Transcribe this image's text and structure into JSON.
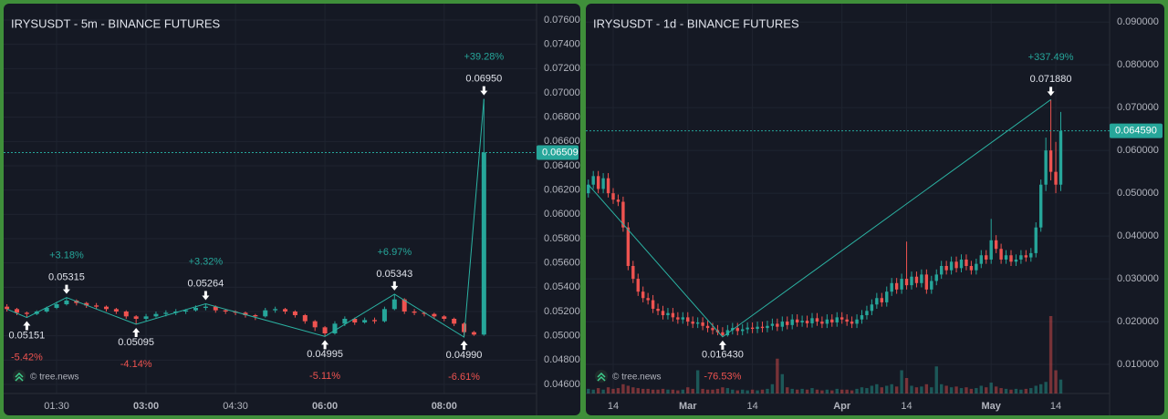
{
  "chart_data": [
    {
      "type": "candlestick",
      "title": "IRYSUSDT - 5m - BINANCE FUTURES",
      "watermark": "© tree.news",
      "categories": [
        null,
        null,
        null,
        null,
        null,
        "01:30",
        null,
        null,
        null,
        null,
        null,
        null,
        null,
        null,
        "03:00",
        null,
        null,
        null,
        null,
        null,
        null,
        null,
        null,
        "04:30",
        null,
        null,
        null,
        null,
        null,
        null,
        null,
        null,
        "06:00",
        null,
        null,
        null,
        null,
        null,
        null,
        null,
        null,
        null,
        null,
        null,
        "08:00",
        null,
        null,
        null,
        null
      ],
      "open": [
        0.0524,
        0.0522,
        0.0519,
        0.0518,
        0.052,
        0.0523,
        0.0526,
        0.0529,
        0.0527,
        0.0525,
        0.0524,
        0.0522,
        0.052,
        0.0516,
        0.0514,
        0.0516,
        0.0518,
        0.0519,
        0.052,
        0.0521,
        0.0523,
        0.0524,
        0.0521,
        0.052,
        0.0519,
        0.0517,
        0.0516,
        0.0521,
        0.0522,
        0.052,
        0.0517,
        0.0512,
        0.0507,
        0.0502,
        0.051,
        0.0514,
        0.0511,
        0.0513,
        0.0512,
        0.0522,
        0.053,
        0.052,
        0.0519,
        0.0518,
        0.0516,
        0.0514,
        0.051,
        0.0503,
        0.0501
      ],
      "high": [
        0.0526,
        0.0523,
        0.052,
        0.0521,
        0.0524,
        0.0528,
        0.05315,
        0.053,
        0.0528,
        0.0527,
        0.0525,
        0.0523,
        0.0521,
        0.0517,
        0.0518,
        0.052,
        0.0521,
        0.0522,
        0.0522,
        0.0525,
        0.05264,
        0.0525,
        0.0522,
        0.0521,
        0.052,
        0.0518,
        0.0523,
        0.0524,
        0.0523,
        0.0521,
        0.0518,
        0.0513,
        0.0508,
        0.0512,
        0.0516,
        0.0515,
        0.0515,
        0.0515,
        0.0524,
        0.05343,
        0.0531,
        0.0522,
        0.052,
        0.0519,
        0.0517,
        0.0515,
        0.0511,
        0.0504,
        0.0695
      ],
      "low": [
        0.052,
        0.0517,
        0.05151,
        0.0517,
        0.0519,
        0.0522,
        0.0525,
        0.0525,
        0.0523,
        0.0522,
        0.052,
        0.0518,
        0.0514,
        0.05095,
        0.0512,
        0.0515,
        0.0516,
        0.0517,
        0.0518,
        0.052,
        0.0521,
        0.0519,
        0.0518,
        0.0517,
        0.0515,
        0.0513,
        0.0515,
        0.0519,
        0.0518,
        0.0515,
        0.051,
        0.0504,
        0.04995,
        0.0501,
        0.0508,
        0.0509,
        0.051,
        0.051,
        0.0511,
        0.0521,
        0.0518,
        0.0517,
        0.0516,
        0.0514,
        0.0512,
        0.0508,
        0.0499,
        0.05,
        0.05
      ],
      "close": [
        0.0522,
        0.0519,
        0.0518,
        0.052,
        0.0523,
        0.0526,
        0.0529,
        0.0527,
        0.0525,
        0.0524,
        0.0522,
        0.052,
        0.0516,
        0.0514,
        0.0516,
        0.0518,
        0.0519,
        0.052,
        0.0521,
        0.0523,
        0.0524,
        0.0521,
        0.052,
        0.0519,
        0.0517,
        0.0516,
        0.0521,
        0.0522,
        0.052,
        0.0517,
        0.0512,
        0.0507,
        0.0502,
        0.051,
        0.0514,
        0.0511,
        0.0513,
        0.0512,
        0.0522,
        0.053,
        0.052,
        0.0519,
        0.0518,
        0.0516,
        0.0514,
        0.051,
        0.0503,
        0.0501,
        0.06509
      ],
      "pivots": [
        {
          "value": 0.05151,
          "label": "0.05151",
          "change": "-5.42%"
        },
        {
          "value": 0.05315,
          "label": "0.05315",
          "change": "+3.18%"
        },
        {
          "value": 0.05095,
          "label": "0.05095",
          "change": "-4.14%"
        },
        {
          "value": 0.05264,
          "label": "0.05264",
          "change": "+3.32%"
        },
        {
          "value": 0.04995,
          "label": "0.04995",
          "change": "-5.11%"
        },
        {
          "value": 0.05343,
          "label": "0.05343",
          "change": "+6.97%"
        },
        {
          "value": 0.0499,
          "label": "0.04990",
          "change": "-6.61%"
        },
        {
          "value": 0.0695,
          "label": "0.06950",
          "change": "+39.28%"
        }
      ],
      "last": {
        "value": 0.06509,
        "label": "0.06509"
      },
      "ylim": [
        0.04525,
        0.07735
      ],
      "yticks": [
        {
          "value": 0.046,
          "label": "0.04600"
        },
        {
          "value": 0.048,
          "label": "0.04800"
        },
        {
          "value": 0.05,
          "label": "0.05000"
        },
        {
          "value": 0.052,
          "label": "0.05200"
        },
        {
          "value": 0.054,
          "label": "0.05400"
        },
        {
          "value": 0.056,
          "label": "0.05600"
        },
        {
          "value": 0.058,
          "label": "0.05800"
        },
        {
          "value": 0.06,
          "label": "0.06000"
        },
        {
          "value": 0.062,
          "label": "0.06200"
        },
        {
          "value": 0.064,
          "label": "0.06400"
        },
        {
          "value": 0.066,
          "label": "0.06600"
        },
        {
          "value": 0.068,
          "label": "0.06800"
        },
        {
          "value": 0.07,
          "label": "0.07000"
        },
        {
          "value": 0.072,
          "label": "0.07200"
        },
        {
          "value": 0.074,
          "label": "0.07400"
        },
        {
          "value": 0.076,
          "label": "0.07600"
        }
      ],
      "grid": true,
      "up_color": "#26a69a",
      "down_color": "#ef5350"
    },
    {
      "type": "candlestick",
      "title": "IRYSUSDT - 1d - BINANCE FUTURES",
      "watermark": "© tree.news",
      "categories": [
        null,
        null,
        null,
        null,
        null,
        "14",
        null,
        null,
        null,
        null,
        null,
        null,
        null,
        null,
        null,
        null,
        null,
        null,
        null,
        null,
        "Mar",
        null,
        null,
        null,
        null,
        null,
        null,
        null,
        null,
        null,
        null,
        null,
        null,
        "14",
        null,
        null,
        null,
        null,
        null,
        null,
        null,
        null,
        null,
        null,
        null,
        null,
        null,
        null,
        null,
        null,
        null,
        "Apr",
        null,
        null,
        null,
        null,
        null,
        null,
        null,
        null,
        null,
        null,
        null,
        null,
        "14",
        null,
        null,
        null,
        null,
        null,
        null,
        null,
        null,
        null,
        null,
        null,
        null,
        null,
        null,
        null,
        null,
        "May",
        null,
        null,
        null,
        null,
        null,
        null,
        null,
        null,
        null,
        null,
        null,
        null,
        "14",
        null
      ],
      "open": [
        0.05,
        0.052,
        0.054,
        0.051,
        0.0535,
        0.05,
        0.0485,
        0.048,
        0.042,
        0.033,
        0.03,
        0.027,
        0.0255,
        0.025,
        0.023,
        0.0225,
        0.0215,
        0.022,
        0.021,
        0.0205,
        0.021,
        0.02,
        0.0195,
        0.0198,
        0.019,
        0.0185,
        0.018,
        0.0175,
        0.0168,
        0.018,
        0.0185,
        0.0178,
        0.0182,
        0.0186,
        0.0183,
        0.0188,
        0.0185,
        0.019,
        0.0195,
        0.0188,
        0.02,
        0.0192,
        0.0205,
        0.0198,
        0.0202,
        0.0196,
        0.0208,
        0.02,
        0.0195,
        0.0205,
        0.0198,
        0.021,
        0.0205,
        0.02,
        0.0195,
        0.0205,
        0.0215,
        0.0225,
        0.024,
        0.0255,
        0.0245,
        0.027,
        0.029,
        0.0275,
        0.03,
        0.0285,
        0.0305,
        0.029,
        0.031,
        0.0275,
        0.0295,
        0.031,
        0.033,
        0.032,
        0.034,
        0.0325,
        0.0345,
        0.033,
        0.032,
        0.0335,
        0.0355,
        0.0345,
        0.039,
        0.037,
        0.0345,
        0.0355,
        0.034,
        0.0345,
        0.0355,
        0.035,
        0.036,
        0.042,
        0.052,
        0.06,
        0.055,
        0.052
      ],
      "high": [
        0.0532,
        0.0552,
        0.0552,
        0.0547,
        0.0547,
        0.0512,
        0.0497,
        0.0492,
        0.0432,
        0.0342,
        0.0312,
        0.0282,
        0.0267,
        0.0262,
        0.0242,
        0.0237,
        0.0232,
        0.0232,
        0.0222,
        0.0222,
        0.0222,
        0.0212,
        0.021,
        0.021,
        0.0202,
        0.0197,
        0.0192,
        0.0187,
        0.0192,
        0.0197,
        0.0197,
        0.0194,
        0.0198,
        0.0198,
        0.02,
        0.02,
        0.0202,
        0.0207,
        0.0207,
        0.0212,
        0.0212,
        0.0217,
        0.0217,
        0.0214,
        0.0214,
        0.022,
        0.022,
        0.0212,
        0.0217,
        0.0217,
        0.0222,
        0.0222,
        0.0217,
        0.0212,
        0.0217,
        0.0227,
        0.0237,
        0.0252,
        0.0267,
        0.0267,
        0.0282,
        0.0302,
        0.0302,
        0.0312,
        0.0387,
        0.0317,
        0.0317,
        0.0322,
        0.0322,
        0.0307,
        0.0322,
        0.0342,
        0.0342,
        0.0352,
        0.0352,
        0.0357,
        0.0357,
        0.0342,
        0.0347,
        0.0367,
        0.0367,
        0.044,
        0.0402,
        0.0382,
        0.0367,
        0.0367,
        0.0357,
        0.0367,
        0.0367,
        0.0372,
        0.0432,
        0.0532,
        0.063,
        0.07188,
        0.062,
        0.069
      ],
      "low": [
        0.049,
        0.051,
        0.05,
        0.05,
        0.049,
        0.0475,
        0.047,
        0.041,
        0.032,
        0.029,
        0.026,
        0.0245,
        0.024,
        0.022,
        0.0215,
        0.0205,
        0.0205,
        0.02,
        0.0195,
        0.0195,
        0.019,
        0.0185,
        0.0185,
        0.018,
        0.0175,
        0.017,
        0.0168,
        0.01643,
        0.0165,
        0.017,
        0.0168,
        0.0168,
        0.0172,
        0.0173,
        0.0173,
        0.0175,
        0.0175,
        0.018,
        0.0178,
        0.0178,
        0.0182,
        0.0182,
        0.0188,
        0.0188,
        0.0186,
        0.0186,
        0.019,
        0.0185,
        0.0185,
        0.0188,
        0.0188,
        0.0195,
        0.019,
        0.0185,
        0.0185,
        0.0195,
        0.0205,
        0.0215,
        0.023,
        0.0235,
        0.0235,
        0.026,
        0.0265,
        0.0265,
        0.0275,
        0.0275,
        0.028,
        0.028,
        0.0265,
        0.0265,
        0.0285,
        0.03,
        0.031,
        0.031,
        0.0315,
        0.0315,
        0.032,
        0.031,
        0.031,
        0.0325,
        0.0335,
        0.0335,
        0.036,
        0.0335,
        0.0335,
        0.033,
        0.033,
        0.0335,
        0.034,
        0.034,
        0.035,
        0.041,
        0.0505,
        0.053,
        0.05,
        0.0505
      ],
      "close": [
        0.052,
        0.054,
        0.051,
        0.0535,
        0.05,
        0.0485,
        0.048,
        0.042,
        0.033,
        0.03,
        0.027,
        0.0255,
        0.025,
        0.023,
        0.0225,
        0.0215,
        0.022,
        0.021,
        0.0205,
        0.021,
        0.02,
        0.0195,
        0.0198,
        0.019,
        0.0185,
        0.018,
        0.0175,
        0.0168,
        0.018,
        0.0185,
        0.0178,
        0.0182,
        0.0186,
        0.0183,
        0.0188,
        0.0185,
        0.019,
        0.0195,
        0.0188,
        0.02,
        0.0192,
        0.0205,
        0.0198,
        0.0202,
        0.0196,
        0.0208,
        0.02,
        0.0195,
        0.0205,
        0.0198,
        0.021,
        0.0205,
        0.02,
        0.0195,
        0.0205,
        0.0215,
        0.0225,
        0.024,
        0.0255,
        0.0245,
        0.027,
        0.029,
        0.0275,
        0.03,
        0.0285,
        0.0305,
        0.029,
        0.031,
        0.0275,
        0.0295,
        0.031,
        0.033,
        0.032,
        0.034,
        0.0325,
        0.0345,
        0.033,
        0.032,
        0.0335,
        0.0355,
        0.0345,
        0.039,
        0.037,
        0.0345,
        0.0355,
        0.034,
        0.0345,
        0.0355,
        0.035,
        0.036,
        0.042,
        0.052,
        0.06,
        0.055,
        0.052,
        0.06459
      ],
      "volume": [
        6,
        5,
        7,
        5,
        8,
        6,
        7,
        12,
        10,
        8,
        7,
        6,
        6,
        5,
        5,
        6,
        5,
        5,
        4,
        5,
        8,
        6,
        30,
        6,
        5,
        5,
        6,
        8,
        7,
        5,
        4,
        5,
        4,
        5,
        4,
        5,
        6,
        12,
        45,
        25,
        8,
        6,
        5,
        6,
        5,
        7,
        5,
        4,
        5,
        4,
        6,
        5,
        5,
        4,
        6,
        8,
        7,
        10,
        12,
        8,
        10,
        12,
        9,
        30,
        20,
        10,
        8,
        9,
        12,
        8,
        35,
        12,
        10,
        8,
        9,
        7,
        8,
        6,
        7,
        10,
        8,
        14,
        9,
        7,
        6,
        5,
        6,
        5,
        6,
        7,
        10,
        12,
        15,
        100,
        30,
        18
      ],
      "pivots": [
        {
          "value": 0.01643,
          "label": "0.016430",
          "change": "-76.53%"
        },
        {
          "value": 0.07188,
          "label": "0.071880",
          "change": "+337.49%"
        }
      ],
      "last": {
        "value": 0.06459,
        "label": "0.064590"
      },
      "ylim": [
        0.0032,
        0.0943
      ],
      "yticks": [
        {
          "value": 0.01,
          "label": "0.010000"
        },
        {
          "value": 0.02,
          "label": "0.020000"
        },
        {
          "value": 0.03,
          "label": "0.030000"
        },
        {
          "value": 0.04,
          "label": "0.040000"
        },
        {
          "value": 0.05,
          "label": "0.050000"
        },
        {
          "value": 0.06,
          "label": "0.060000"
        },
        {
          "value": 0.07,
          "label": "0.070000"
        },
        {
          "value": 0.08,
          "label": "0.080000"
        },
        {
          "value": 0.09,
          "label": "0.090000"
        }
      ],
      "grid": true,
      "up_color": "#26a69a",
      "down_color": "#ef5350"
    }
  ]
}
